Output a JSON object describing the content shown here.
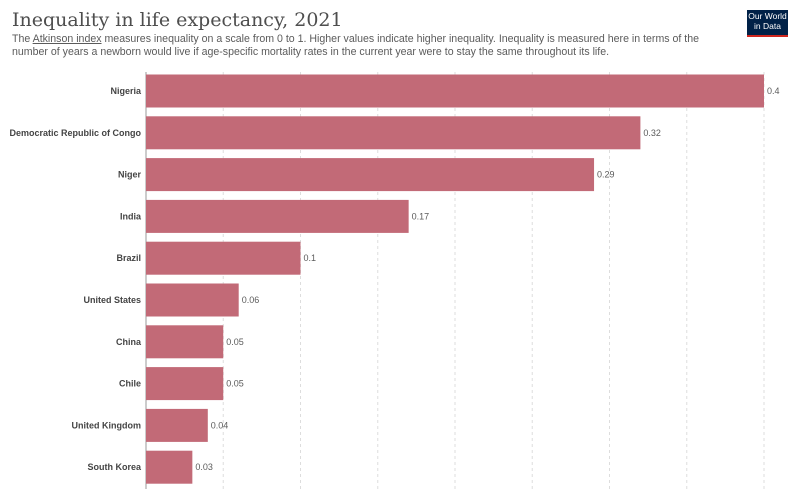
{
  "header": {
    "title": "Inequality in life expectancy, 2021",
    "subtitle_prefix": "The ",
    "subtitle_link": "Atkinson index",
    "subtitle_rest": " measures inequality on a scale from 0 to 1. Higher values indicate higher inequality. Inequality is measured here in terms of the number of years a newborn would live if age-specific mortality rates in the current year were to stay the same throughout its life.",
    "logo_line1": "Our World",
    "logo_line2": "in Data"
  },
  "colors": {
    "bar": "#c26a77",
    "grid": "#dddddd",
    "logo_bg": "#002147",
    "logo_accent": "#ce261e"
  },
  "chart_data": {
    "type": "bar",
    "orientation": "horizontal",
    "title": "Inequality in life expectancy, 2021",
    "categories": [
      "Nigeria",
      "Democratic Republic of Congo",
      "Niger",
      "India",
      "Brazil",
      "United States",
      "China",
      "Chile",
      "United Kingdom",
      "South Korea"
    ],
    "values": [
      0.4,
      0.32,
      0.29,
      0.17,
      0.1,
      0.06,
      0.05,
      0.05,
      0.04,
      0.03
    ],
    "value_labels": [
      "0.4",
      "0.32",
      "0.29",
      "0.17",
      "0.1",
      "0.06",
      "0.05",
      "0.05",
      "0.04",
      "0.03"
    ],
    "xlim": [
      0,
      0.4
    ],
    "grid_step": 0.05,
    "grid": true,
    "xlabel": "",
    "ylabel": ""
  }
}
